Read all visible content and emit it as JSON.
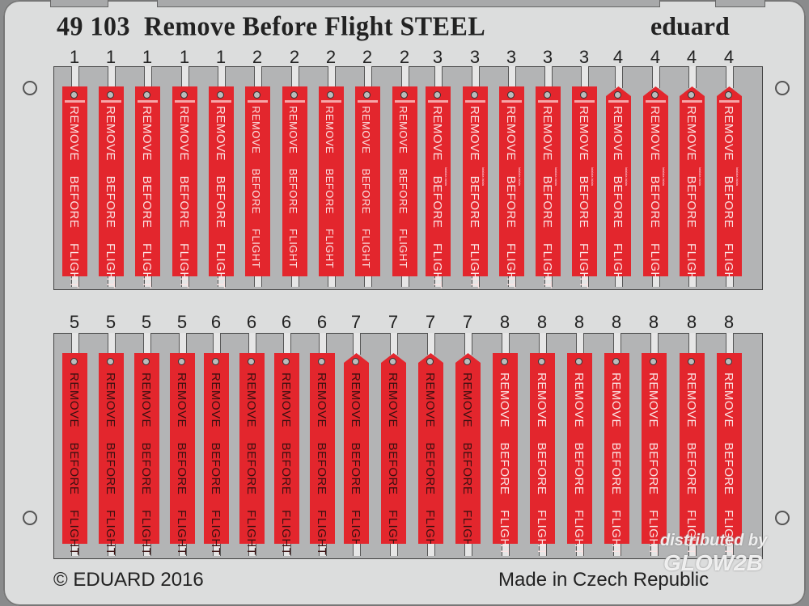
{
  "header": {
    "title": "49 103  Remove Before Flight STEEL",
    "brand": "eduard"
  },
  "tag_text": "REMOVE BEFORE FLIGHT",
  "tiny_text": "lalalala lalala",
  "colors": {
    "tag_red": "#e3262d",
    "fret": "#dcdddd",
    "panel": "#b3b4b5"
  },
  "rows": [
    {
      "labels": [
        "1",
        "1",
        "1",
        "1",
        "1",
        "2",
        "2",
        "2",
        "2",
        "2",
        "3",
        "3",
        "3",
        "3",
        "3",
        "4",
        "4",
        "4",
        "4"
      ]
    },
    {
      "labels": [
        "5",
        "5",
        "5",
        "5",
        "6",
        "6",
        "6",
        "6",
        "7",
        "7",
        "7",
        "7",
        "8",
        "8",
        "8",
        "8",
        "8",
        "8",
        "8"
      ]
    }
  ],
  "footer": {
    "copyright": "© EDUARD 2016",
    "origin": "Made in Czech Republic"
  },
  "watermark": {
    "line1": "distributed by",
    "line2": "GLOW2B"
  }
}
